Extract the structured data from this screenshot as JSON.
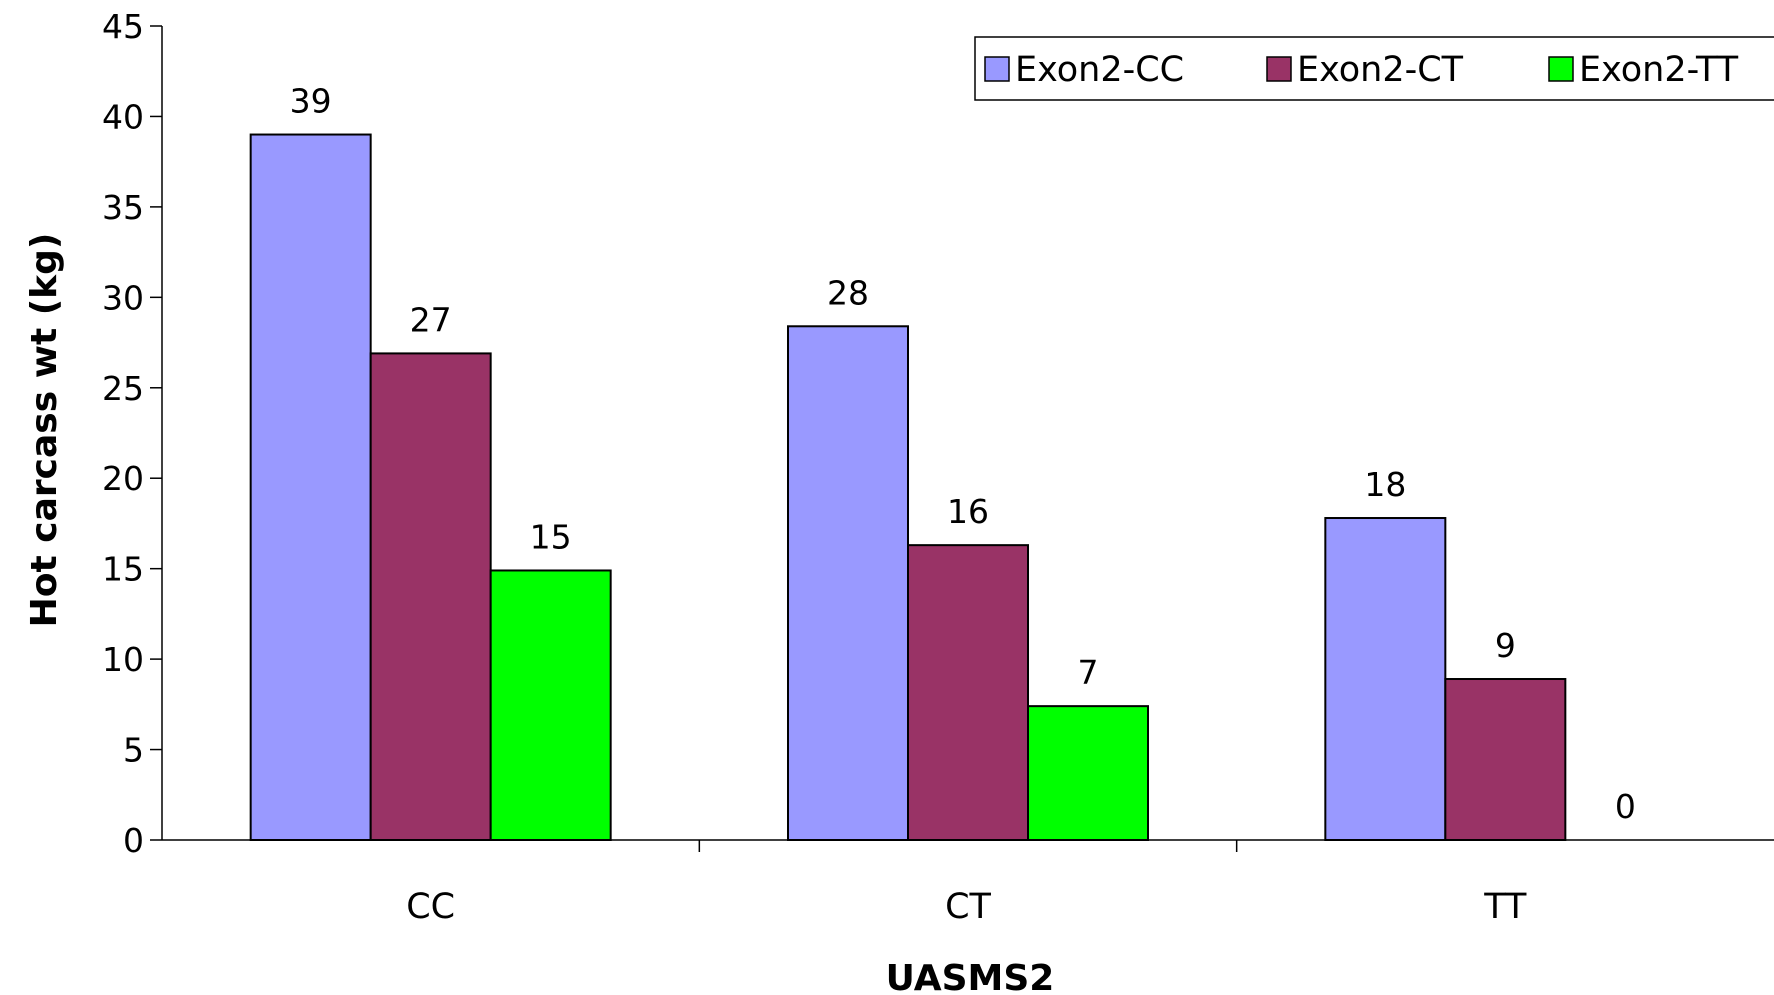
{
  "chart_data": {
    "type": "bar",
    "xlabel": "UASMS2",
    "ylabel": "Hot carcass wt (kg)",
    "categories": [
      "CC",
      "CT",
      "TT"
    ],
    "series": [
      {
        "name": "Exon2-CC",
        "color": "#9999ff",
        "values": [
          39,
          28.4,
          17.8
        ],
        "value_labels": [
          "39",
          "28",
          "18"
        ]
      },
      {
        "name": "Exon2-CT",
        "color": "#993366",
        "values": [
          26.9,
          16.3,
          8.9
        ],
        "value_labels": [
          "27",
          "16",
          "9"
        ]
      },
      {
        "name": "Exon2-TT",
        "color": "#00ff00",
        "values": [
          14.9,
          7.4,
          0
        ],
        "value_labels": [
          "15",
          "7",
          "0"
        ]
      }
    ],
    "ylim": [
      0,
      45
    ],
    "yticks": [
      0,
      5,
      10,
      15,
      20,
      25,
      30,
      35,
      40,
      45
    ],
    "legend": "top-right"
  }
}
